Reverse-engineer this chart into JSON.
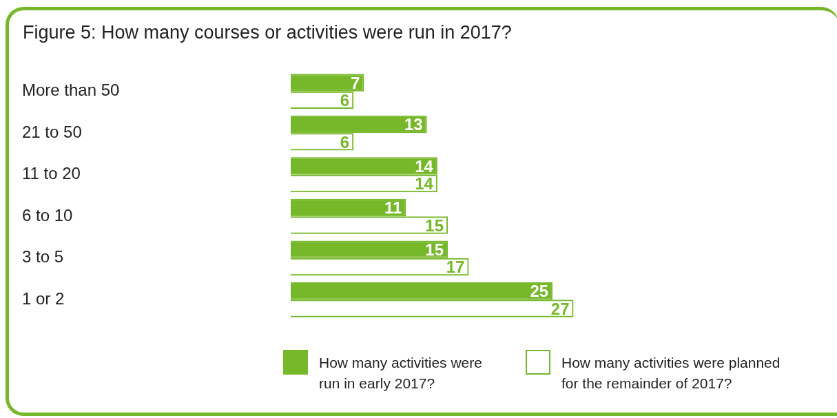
{
  "chart_data": {
    "type": "bar",
    "orientation": "horizontal",
    "title": "Figure 5: How many courses or activities were run in 2017?",
    "categories": [
      "More than 50",
      "21 to 50",
      "11 to 20",
      "6 to 10",
      "3 to 5",
      "1 or 2"
    ],
    "series": [
      {
        "name": "How many activities were run in early 2017?",
        "color": "#76b82a",
        "values": [
          7,
          13,
          14,
          11,
          15,
          25
        ]
      },
      {
        "name": "How many activities were planned for the remainder of 2017?",
        "color": "#76b82a",
        "values": [
          6,
          6,
          14,
          15,
          17,
          27
        ]
      }
    ],
    "data_labels": true,
    "legend": "bottom"
  }
}
